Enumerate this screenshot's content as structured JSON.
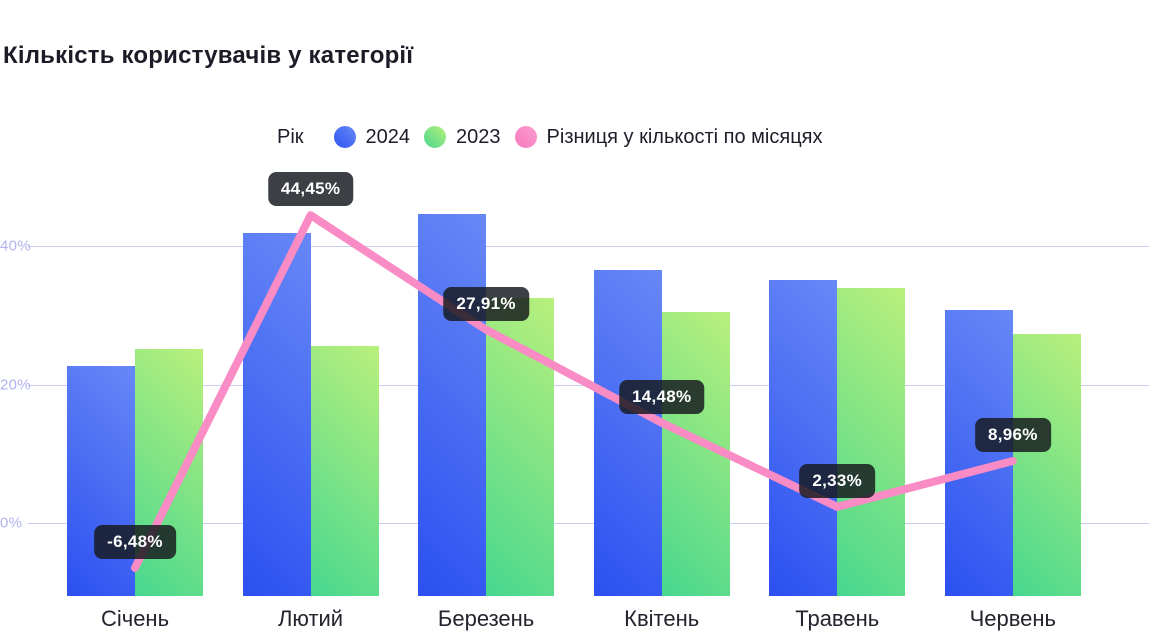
{
  "title": "Кількість користувачів у категорії",
  "legend": {
    "title": "Рік",
    "items": [
      {
        "label": "2024",
        "series": "2024",
        "swatch": "blue-circle"
      },
      {
        "label": "2023",
        "series": "2023",
        "swatch": "green-circle"
      },
      {
        "label": "Різниця у кількості по місяцях",
        "series": "diff",
        "swatch": "pink-circle"
      }
    ]
  },
  "y_axis": {
    "unit": "%",
    "ticks": [
      {
        "label": "40%",
        "value": 40
      },
      {
        "label": "20%",
        "value": 20
      },
      {
        "label": "0%",
        "value": 0
      }
    ]
  },
  "chart_data": {
    "type": "combo_bar_line",
    "title": "Кількість користувачів у категорії",
    "categories": [
      "Січень",
      "Лютий",
      "Березень",
      "Квітень",
      "Травень",
      "Червень"
    ],
    "series": [
      {
        "name": "2024",
        "type": "bar",
        "unit": "relative units (bar value axis hidden in chart)",
        "values": [
          230,
          363,
          382,
          326,
          316,
          286
        ]
      },
      {
        "name": "2023",
        "type": "bar",
        "unit": "relative units (bar value axis hidden in chart)",
        "values": [
          247,
          250,
          298,
          284,
          308,
          262
        ]
      },
      {
        "name": "Різниця у кількості по місяцях",
        "type": "line",
        "unit": "%",
        "values": [
          -6.48,
          44.45,
          27.91,
          14.48,
          2.33,
          8.96
        ],
        "labels": [
          "-6,48%",
          "44,45%",
          "27,91%",
          "14,48%",
          "2,33%",
          "8,96%"
        ]
      }
    ],
    "line_axis": {
      "ticks": [
        0,
        20,
        40
      ],
      "unit": "%",
      "position": "left"
    },
    "legend_position": "top",
    "grid": "horizontal"
  },
  "colors": {
    "bar_2024_gradient": [
      "#6788f6",
      "#2b50f0"
    ],
    "bar_2023_gradient": [
      "#b9f07c",
      "#47d78f"
    ],
    "line_diff": "#f98bc5",
    "gridline": "#c9ccf2",
    "tick_label": "#b1b3ec",
    "axis_label": "#23242e",
    "title": "#1b1c27",
    "badge_bg": "rgba(23,26,31,0.84)",
    "badge_text": "#ffffff",
    "background": "#ffffff"
  }
}
